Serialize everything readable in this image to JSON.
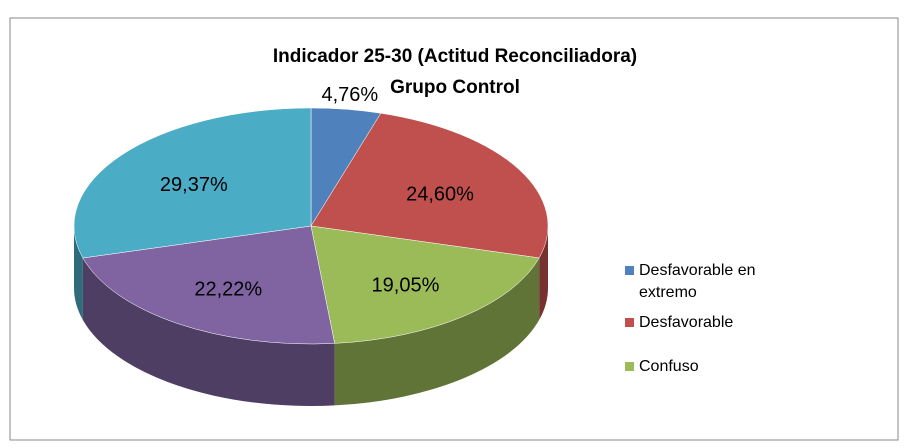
{
  "chart_data": {
    "type": "pie3d",
    "title": "Indicador 25-30 (Actitud Reconciliadora)",
    "subtitle": "Grupo Control",
    "categories": [
      "Desfavorable en extremo",
      "Desfavorable",
      "Confuso",
      null,
      null
    ],
    "values": [
      4.76,
      24.6,
      19.05,
      22.22,
      29.37
    ],
    "value_labels": [
      "4,76%",
      "24,60%",
      "19,05%",
      "22,22%",
      "29,37%"
    ],
    "colors": [
      "#4f81bd",
      "#c0504d",
      "#9bbb59",
      "#8064a2",
      "#4bacc6"
    ],
    "legend": "right"
  }
}
